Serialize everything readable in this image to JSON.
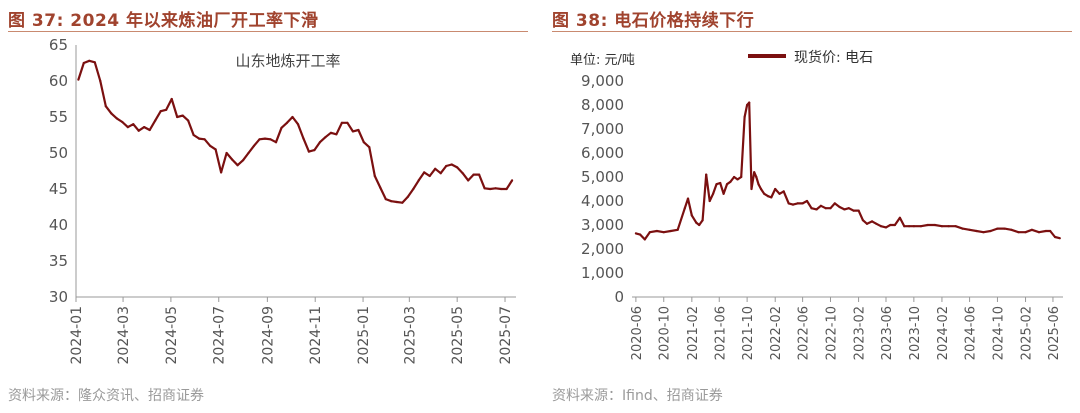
{
  "left": {
    "title": "图 37:  2024 年以来炼油厂开工率下滑",
    "source": "资料来源：隆众资讯、招商证券"
  },
  "right": {
    "title": "图 38:  电石价格持续下行",
    "source": "资料来源：Ifind、招商证券"
  },
  "colors": {
    "line": "#7b1010",
    "title": "#a0432e",
    "axis": "#999999",
    "text": "#555555"
  },
  "chart_data": [
    {
      "type": "line",
      "title": "山东地炼开工率",
      "xlabel": "",
      "ylabel": "",
      "ylim": [
        30,
        65
      ],
      "yticks": [
        "30",
        "35",
        "40",
        "45",
        "50",
        "55",
        "60",
        "65"
      ],
      "xticks": [
        "2024-01",
        "2024-03",
        "2024-05",
        "2024-07",
        "2024-09",
        "2024-11",
        "2025-01",
        "2025-03",
        "2025-05",
        "2025-07"
      ],
      "grid": false,
      "series": [
        {
          "name": "山东地炼开工率",
          "x": [
            "2024-01-04",
            "2024-01-11",
            "2024-01-18",
            "2024-01-25",
            "2024-02-01",
            "2024-02-08",
            "2024-02-15",
            "2024-02-22",
            "2024-02-29",
            "2024-03-07",
            "2024-03-14",
            "2024-03-21",
            "2024-03-28",
            "2024-04-04",
            "2024-04-11",
            "2024-04-18",
            "2024-04-25",
            "2024-05-02",
            "2024-05-09",
            "2024-05-16",
            "2024-05-23",
            "2024-05-30",
            "2024-06-06",
            "2024-06-13",
            "2024-06-20",
            "2024-06-27",
            "2024-07-04",
            "2024-07-11",
            "2024-07-18",
            "2024-07-25",
            "2024-08-01",
            "2024-08-08",
            "2024-08-15",
            "2024-08-22",
            "2024-08-29",
            "2024-09-05",
            "2024-09-12",
            "2024-09-19",
            "2024-09-26",
            "2024-10-03",
            "2024-10-10",
            "2024-10-17",
            "2024-10-24",
            "2024-10-31",
            "2024-11-07",
            "2024-11-14",
            "2024-11-21",
            "2024-11-28",
            "2024-12-05",
            "2024-12-12",
            "2024-12-19",
            "2024-12-26",
            "2025-01-02",
            "2025-01-09",
            "2025-01-16",
            "2025-01-23",
            "2025-01-30",
            "2025-02-06",
            "2025-02-13",
            "2025-02-20",
            "2025-02-27",
            "2025-03-06",
            "2025-03-13",
            "2025-03-20",
            "2025-03-27",
            "2025-04-03",
            "2025-04-10",
            "2025-04-17",
            "2025-04-24",
            "2025-05-01",
            "2025-05-08",
            "2025-05-15",
            "2025-05-22",
            "2025-05-29",
            "2025-06-05",
            "2025-06-12",
            "2025-06-19",
            "2025-06-26",
            "2025-07-03",
            "2025-07-10"
          ],
          "values": [
            60.2,
            62.5,
            62.8,
            62.6,
            60.0,
            56.5,
            55.5,
            54.8,
            54.3,
            53.6,
            54.0,
            53.1,
            53.6,
            53.2,
            54.5,
            55.8,
            56.0,
            57.5,
            55.0,
            55.2,
            54.5,
            52.5,
            52.0,
            51.9,
            51.0,
            50.5,
            47.3,
            50.0,
            49.1,
            48.3,
            49.0,
            50.0,
            51.0,
            51.9,
            52.0,
            51.9,
            51.5,
            53.5,
            54.2,
            55.0,
            54.0,
            52.0,
            50.2,
            50.4,
            51.5,
            52.2,
            52.8,
            52.6,
            54.2,
            54.2,
            53.0,
            53.2,
            51.5,
            50.8,
            46.8,
            45.2,
            43.6,
            43.3,
            43.2,
            43.1,
            43.9,
            45.0,
            46.2,
            47.3,
            46.8,
            47.8,
            47.2,
            48.2,
            48.4,
            48.0,
            47.2,
            46.2,
            47.0,
            47.0,
            45.1,
            45.0,
            45.1,
            45.0,
            45.0,
            46.2
          ]
        }
      ]
    },
    {
      "type": "line",
      "title": "",
      "ylabel": "单位:  元/吨",
      "xlabel": "",
      "ylim": [
        0,
        9000
      ],
      "yticks": [
        "0",
        "1,000",
        "2,000",
        "3,000",
        "4,000",
        "5,000",
        "6,000",
        "7,000",
        "8,000",
        "9,000"
      ],
      "xticks": [
        "2020-06",
        "2020-10",
        "2021-02",
        "2021-06",
        "2021-10",
        "2022-02",
        "2022-06",
        "2022-10",
        "2023-02",
        "2023-06",
        "2023-10",
        "2024-02",
        "2024-06",
        "2024-10",
        "2025-02",
        "2025-06"
      ],
      "legend": "top-center",
      "grid": false,
      "series": [
        {
          "name": "现货价: 电石",
          "x": [
            "2020-06-01",
            "2020-06-20",
            "2020-07-10",
            "2020-08-01",
            "2020-09-01",
            "2020-10-01",
            "2020-11-01",
            "2020-12-01",
            "2021-01-01",
            "2021-01-15",
            "2021-02-01",
            "2021-02-20",
            "2021-03-05",
            "2021-03-20",
            "2021-04-05",
            "2021-04-20",
            "2021-05-05",
            "2021-05-20",
            "2021-06-05",
            "2021-06-20",
            "2021-07-05",
            "2021-07-20",
            "2021-08-05",
            "2021-08-20",
            "2021-09-05",
            "2021-09-20",
            "2021-10-01",
            "2021-10-10",
            "2021-10-20",
            "2021-11-01",
            "2021-11-10",
            "2021-11-20",
            "2021-12-01",
            "2021-12-15",
            "2022-01-01",
            "2022-01-15",
            "2022-02-01",
            "2022-02-20",
            "2022-03-10",
            "2022-04-01",
            "2022-04-20",
            "2022-05-10",
            "2022-06-01",
            "2022-06-20",
            "2022-07-10",
            "2022-08-01",
            "2022-08-20",
            "2022-09-10",
            "2022-10-01",
            "2022-10-20",
            "2022-11-10",
            "2022-12-01",
            "2022-12-20",
            "2023-01-10",
            "2023-02-01",
            "2023-02-20",
            "2023-03-10",
            "2023-04-01",
            "2023-04-20",
            "2023-05-10",
            "2023-06-01",
            "2023-06-20",
            "2023-07-10",
            "2023-08-01",
            "2023-08-20",
            "2023-09-10",
            "2023-10-01",
            "2023-11-01",
            "2023-12-01",
            "2024-01-01",
            "2024-02-01",
            "2024-03-01",
            "2024-04-01",
            "2024-05-01",
            "2024-06-01",
            "2024-07-01",
            "2024-08-01",
            "2024-09-01",
            "2024-10-01",
            "2024-11-01",
            "2024-12-01",
            "2025-01-01",
            "2025-02-01",
            "2025-03-01",
            "2025-04-01",
            "2025-05-01",
            "2025-05-20",
            "2025-06-10",
            "2025-07-01"
          ],
          "values": [
            2650,
            2600,
            2400,
            2700,
            2750,
            2700,
            2750,
            2800,
            3700,
            4100,
            3400,
            3100,
            3000,
            3200,
            5100,
            4000,
            4300,
            4700,
            4750,
            4300,
            4700,
            4800,
            5000,
            4900,
            5000,
            7500,
            8000,
            8100,
            4500,
            5200,
            5000,
            4700,
            4500,
            4300,
            4200,
            4150,
            4500,
            4300,
            4400,
            3900,
            3850,
            3900,
            3900,
            4000,
            3700,
            3650,
            3800,
            3700,
            3700,
            3900,
            3750,
            3650,
            3700,
            3600,
            3600,
            3200,
            3050,
            3150,
            3050,
            2950,
            2900,
            3000,
            3000,
            3300,
            2950,
            2950,
            2950,
            2950,
            3000,
            3000,
            2950,
            2950,
            2950,
            2850,
            2800,
            2750,
            2700,
            2750,
            2850,
            2850,
            2800,
            2700,
            2700,
            2800,
            2700,
            2750,
            2750,
            2500,
            2450
          ]
        }
      ]
    }
  ]
}
